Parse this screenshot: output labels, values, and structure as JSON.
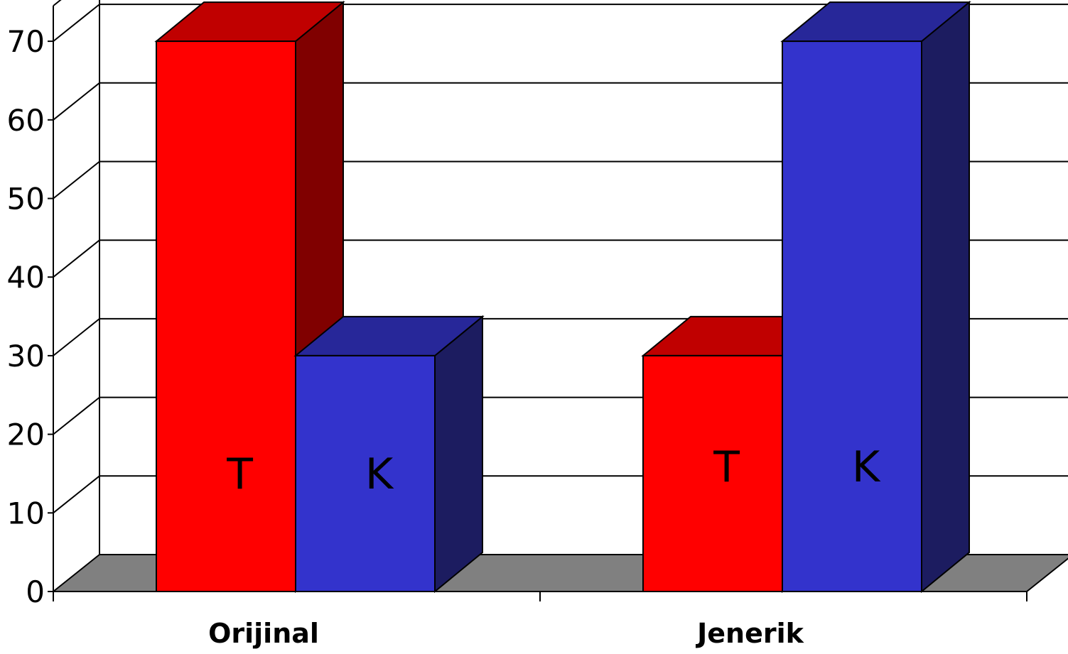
{
  "chart_data": {
    "type": "bar",
    "style": "3d-column",
    "categories": [
      "Orijinal",
      "Jenerik"
    ],
    "series": [
      {
        "values": [
          70,
          30
        ],
        "bar_label": "T",
        "color": "#ff0000",
        "top_color": "#c00000",
        "side_color": "#800000"
      },
      {
        "values": [
          30,
          70
        ],
        "bar_label": "K",
        "color": "#3333cc",
        "top_color": "#272799",
        "side_color": "#1c1c60"
      }
    ],
    "yticks": [
      0,
      10,
      20,
      30,
      40,
      50,
      60,
      70
    ],
    "ylim": [
      0,
      70
    ],
    "grid": true,
    "floor_color": "#808080"
  }
}
